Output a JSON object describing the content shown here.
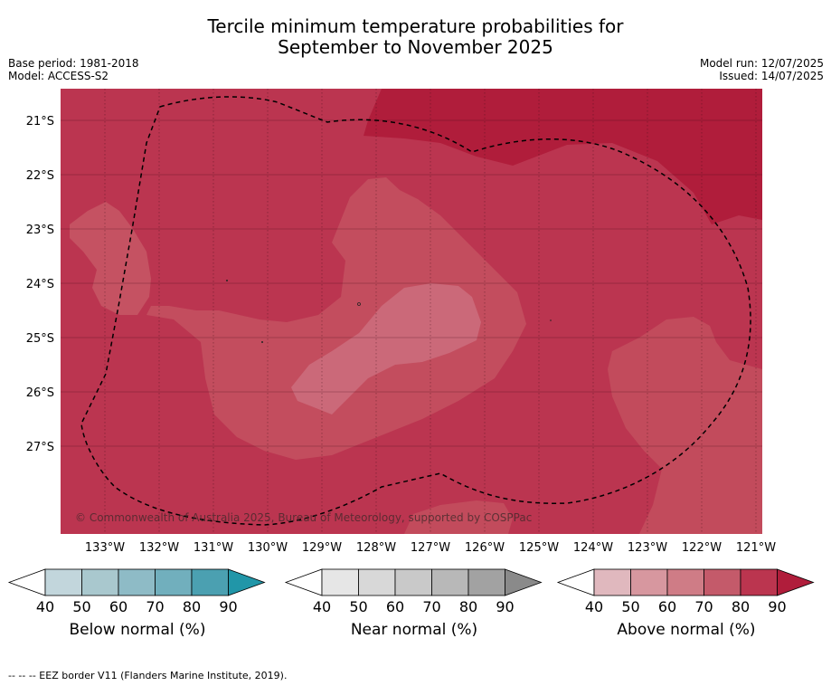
{
  "header": {
    "title_line1": "Tercile minimum temperature probabilities for",
    "title_line2": "September to November 2025",
    "base_period": "Base period: 1981-2018",
    "model": "Model: ACCESS-S2",
    "model_run": "Model run: 12/07/2025",
    "issued": "Issued: 14/07/2025"
  },
  "map": {
    "lat_labels": [
      "21°S",
      "22°S",
      "23°S",
      "24°S",
      "25°S",
      "26°S",
      "27°S"
    ],
    "lon_labels": [
      "133°W",
      "132°W",
      "131°W",
      "130°W",
      "129°W",
      "128°W",
      "127°W",
      "126°W",
      "125°W",
      "124°W",
      "123°W",
      "122°W",
      "121°W"
    ],
    "copyright": "© Commonwealth of Australia 2025, Bureau of Meteorology, supported by COSPPac",
    "colors": {
      "above_70_80": "#c0505f",
      "above_80_90": "#b8324a",
      "above_90": "#b01d3b",
      "above_60_70": "#cc6877",
      "eez_border": "#000000"
    }
  },
  "legends": [
    {
      "title": "Below normal (%)",
      "ticks": [
        "40",
        "50",
        "60",
        "70",
        "80",
        "90"
      ],
      "colors": [
        "#c2d6dc",
        "#a9c8ce",
        "#8ebbc6",
        "#71afbd",
        "#4ba0b1",
        "#2196a8"
      ]
    },
    {
      "title": "Near normal (%)",
      "ticks": [
        "40",
        "50",
        "60",
        "70",
        "80",
        "90"
      ],
      "colors": [
        "#e6e6e6",
        "#d8d8d8",
        "#c9c9c9",
        "#b8b8b8",
        "#a2a2a2",
        "#8a8a8a"
      ]
    },
    {
      "title": "Above normal (%)",
      "ticks": [
        "40",
        "50",
        "60",
        "70",
        "80",
        "90"
      ],
      "colors": [
        "#e0b8be",
        "#d7979f",
        "#cf7c86",
        "#c45a6a",
        "#bb354f",
        "#b01d3b"
      ]
    }
  ],
  "footnote": "--  --  -- EEZ border V11 (Flanders Marine Institute, 2019)."
}
